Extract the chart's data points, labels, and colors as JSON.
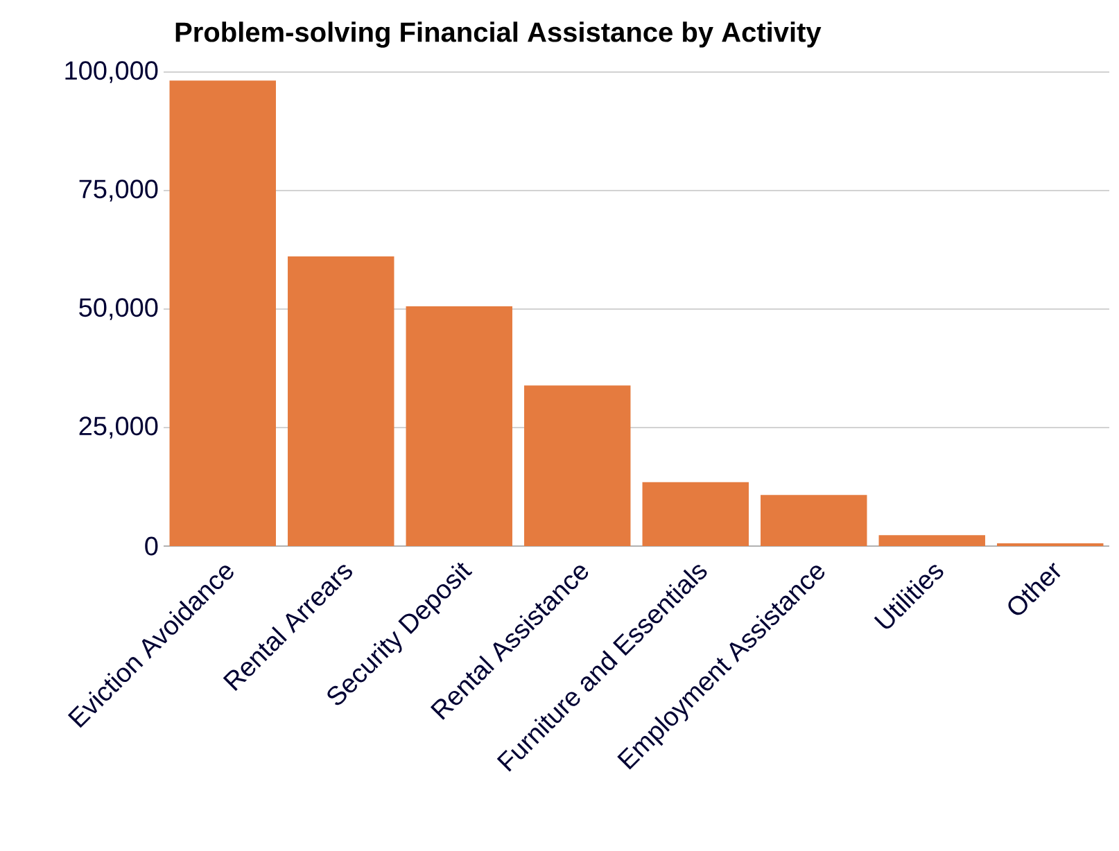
{
  "chart_data": {
    "type": "bar",
    "title": "Problem-solving Financial Assistance by Activity",
    "categories": [
      "Eviction Avoidance",
      "Rental Arrears",
      "Security Deposit",
      "Rental Assistance",
      "Furniture and Essentials",
      "Employment Assistance",
      "Utilities",
      "Other"
    ],
    "values": [
      98200,
      61100,
      50600,
      33900,
      13500,
      10800,
      2300,
      600
    ],
    "color": "#e57b3f",
    "ylim": [
      0,
      100000
    ],
    "yticks": [
      {
        "value": 0,
        "label": "0"
      },
      {
        "value": 25000,
        "label": "25,000"
      },
      {
        "value": 50000,
        "label": "50,000"
      },
      {
        "value": 75000,
        "label": "75,000"
      },
      {
        "value": 100000,
        "label": "100,000"
      }
    ],
    "grid": "y"
  }
}
